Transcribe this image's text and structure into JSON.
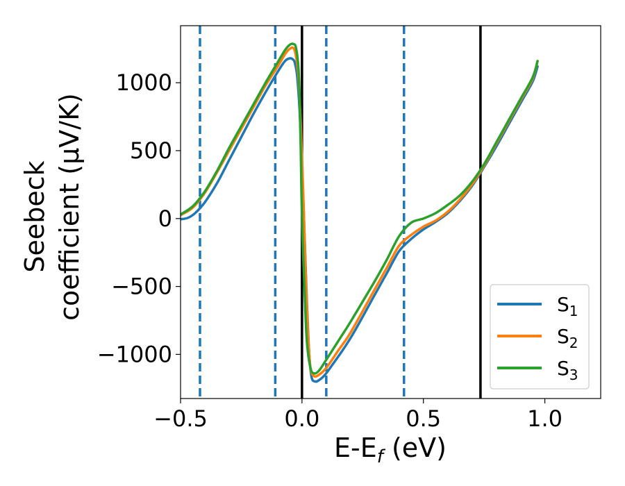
{
  "chart_data": {
    "type": "line",
    "xlabel": "E-E",
    "xlabel_sub": "f",
    "xlabel_unit": " (eV)",
    "ylabel_line1": "Seebeck",
    "ylabel_line2": "coefficient  (μV/K)",
    "xlim": [
      -0.5,
      1.23
    ],
    "ylim": [
      -1325,
      1420
    ],
    "xticks": [
      -0.5,
      0.0,
      0.5,
      1.0
    ],
    "xtick_labels": [
      "−0.5",
      "0.0",
      "0.5",
      "1.0"
    ],
    "yticks": [
      -1000,
      -500,
      0,
      500,
      1000
    ],
    "ytick_labels": [
      "−1000",
      "−500",
      "0",
      "500",
      "1000"
    ],
    "grid": false,
    "legend_position": "lower-right",
    "vlines_dashed": {
      "color": "#1f77b4",
      "x": [
        -0.42,
        -0.11,
        0.1,
        0.42
      ]
    },
    "vlines_solid": {
      "color": "#000000",
      "x": [
        0.0,
        0.735
      ]
    },
    "series": [
      {
        "name": "S",
        "sub": "1",
        "color": "#1f77b4",
        "points": [
          [
            -0.5,
            -5
          ],
          [
            -0.47,
            5
          ],
          [
            -0.44,
            40
          ],
          [
            -0.4,
            120
          ],
          [
            -0.35,
            260
          ],
          [
            -0.3,
            430
          ],
          [
            -0.25,
            600
          ],
          [
            -0.2,
            770
          ],
          [
            -0.15,
            930
          ],
          [
            -0.1,
            1080
          ],
          [
            -0.07,
            1160
          ],
          [
            -0.05,
            1180
          ],
          [
            -0.04,
            1175
          ],
          [
            -0.03,
            1150
          ],
          [
            -0.02,
            1050
          ],
          [
            -0.01,
            800
          ],
          [
            0.0,
            400
          ],
          [
            0.01,
            -100
          ],
          [
            0.02,
            -600
          ],
          [
            0.03,
            -1000
          ],
          [
            0.04,
            -1170
          ],
          [
            0.055,
            -1200
          ],
          [
            0.07,
            -1190
          ],
          [
            0.09,
            -1160
          ],
          [
            0.12,
            -1090
          ],
          [
            0.2,
            -880
          ],
          [
            0.3,
            -560
          ],
          [
            0.35,
            -400
          ],
          [
            0.4,
            -240
          ],
          [
            0.45,
            -150
          ],
          [
            0.5,
            -80
          ],
          [
            0.55,
            -25
          ],
          [
            0.6,
            40
          ],
          [
            0.65,
            130
          ],
          [
            0.7,
            240
          ],
          [
            0.75,
            380
          ],
          [
            0.8,
            530
          ],
          [
            0.85,
            690
          ],
          [
            0.9,
            850
          ],
          [
            0.95,
            1010
          ],
          [
            0.97,
            1120
          ]
        ]
      },
      {
        "name": "S",
        "sub": "2",
        "color": "#ff7f0e",
        "points": [
          [
            -0.5,
            25
          ],
          [
            -0.45,
            80
          ],
          [
            -0.4,
            190
          ],
          [
            -0.35,
            340
          ],
          [
            -0.3,
            500
          ],
          [
            -0.25,
            660
          ],
          [
            -0.2,
            820
          ],
          [
            -0.15,
            980
          ],
          [
            -0.1,
            1120
          ],
          [
            -0.07,
            1210
          ],
          [
            -0.05,
            1250
          ],
          [
            -0.035,
            1255
          ],
          [
            -0.025,
            1200
          ],
          [
            -0.015,
            1050
          ],
          [
            -0.005,
            700
          ],
          [
            0.005,
            200
          ],
          [
            0.015,
            -400
          ],
          [
            0.025,
            -850
          ],
          [
            0.035,
            -1100
          ],
          [
            0.05,
            -1160
          ],
          [
            0.07,
            -1150
          ],
          [
            0.1,
            -1100
          ],
          [
            0.15,
            -970
          ],
          [
            0.2,
            -840
          ],
          [
            0.3,
            -520
          ],
          [
            0.35,
            -360
          ],
          [
            0.4,
            -200
          ],
          [
            0.45,
            -120
          ],
          [
            0.5,
            -60
          ],
          [
            0.55,
            -15
          ],
          [
            0.6,
            50
          ],
          [
            0.65,
            140
          ],
          [
            0.7,
            250
          ],
          [
            0.75,
            390
          ],
          [
            0.8,
            550
          ],
          [
            0.85,
            710
          ],
          [
            0.9,
            870
          ],
          [
            0.95,
            1030
          ],
          [
            0.97,
            1160
          ]
        ]
      },
      {
        "name": "S",
        "sub": "3",
        "color": "#2ca02c",
        "points": [
          [
            -0.5,
            30
          ],
          [
            -0.45,
            90
          ],
          [
            -0.4,
            200
          ],
          [
            -0.35,
            350
          ],
          [
            -0.3,
            520
          ],
          [
            -0.25,
            680
          ],
          [
            -0.2,
            840
          ],
          [
            -0.15,
            1000
          ],
          [
            -0.1,
            1150
          ],
          [
            -0.07,
            1240
          ],
          [
            -0.05,
            1280
          ],
          [
            -0.035,
            1285
          ],
          [
            -0.025,
            1260
          ],
          [
            -0.015,
            1120
          ],
          [
            -0.01,
            900
          ],
          [
            -0.005,
            500
          ],
          [
            0.0,
            0
          ],
          [
            0.01,
            -500
          ],
          [
            0.02,
            -900
          ],
          [
            0.035,
            -1100
          ],
          [
            0.05,
            -1140
          ],
          [
            0.07,
            -1120
          ],
          [
            0.1,
            -1040
          ],
          [
            0.15,
            -900
          ],
          [
            0.2,
            -760
          ],
          [
            0.3,
            -460
          ],
          [
            0.35,
            -300
          ],
          [
            0.4,
            -130
          ],
          [
            0.45,
            -30
          ],
          [
            0.5,
            0
          ],
          [
            0.55,
            40
          ],
          [
            0.6,
            100
          ],
          [
            0.65,
            170
          ],
          [
            0.7,
            270
          ],
          [
            0.75,
            400
          ],
          [
            0.8,
            560
          ],
          [
            0.85,
            720
          ],
          [
            0.9,
            880
          ],
          [
            0.95,
            1040
          ],
          [
            0.97,
            1160
          ]
        ]
      }
    ]
  }
}
